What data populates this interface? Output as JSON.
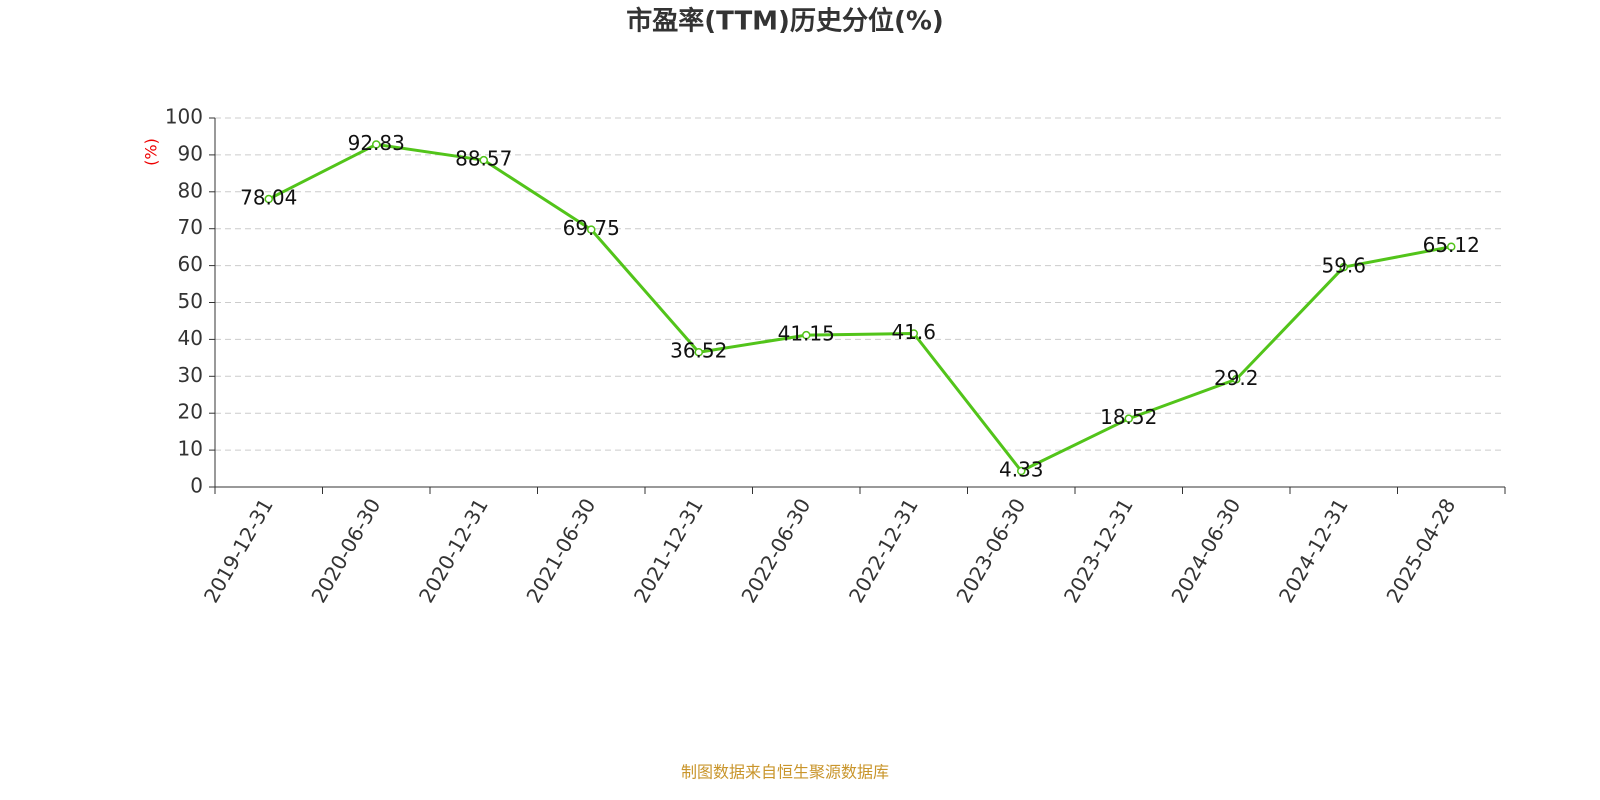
{
  "chart_data": {
    "type": "line",
    "title": "市盈率(TTM)历史分位(%)",
    "y_label": "(%)",
    "source": "制图数据来自恒生聚源数据库",
    "categories": [
      "2019-12-31",
      "2020-06-30",
      "2020-12-31",
      "2021-06-30",
      "2021-12-31",
      "2022-06-30",
      "2022-12-31",
      "2023-06-30",
      "2023-12-31",
      "2024-06-30",
      "2024-12-31",
      "2025-04-28"
    ],
    "values": [
      78.04,
      92.83,
      88.57,
      69.75,
      36.52,
      41.15,
      41.6,
      4.33,
      18.52,
      29.2,
      59.6,
      65.12
    ],
    "color": "#52c41a",
    "ylim": [
      0,
      100
    ],
    "yticks": [
      0,
      10,
      20,
      30,
      40,
      50,
      60,
      70,
      80,
      90,
      100
    ],
    "grid": true
  }
}
